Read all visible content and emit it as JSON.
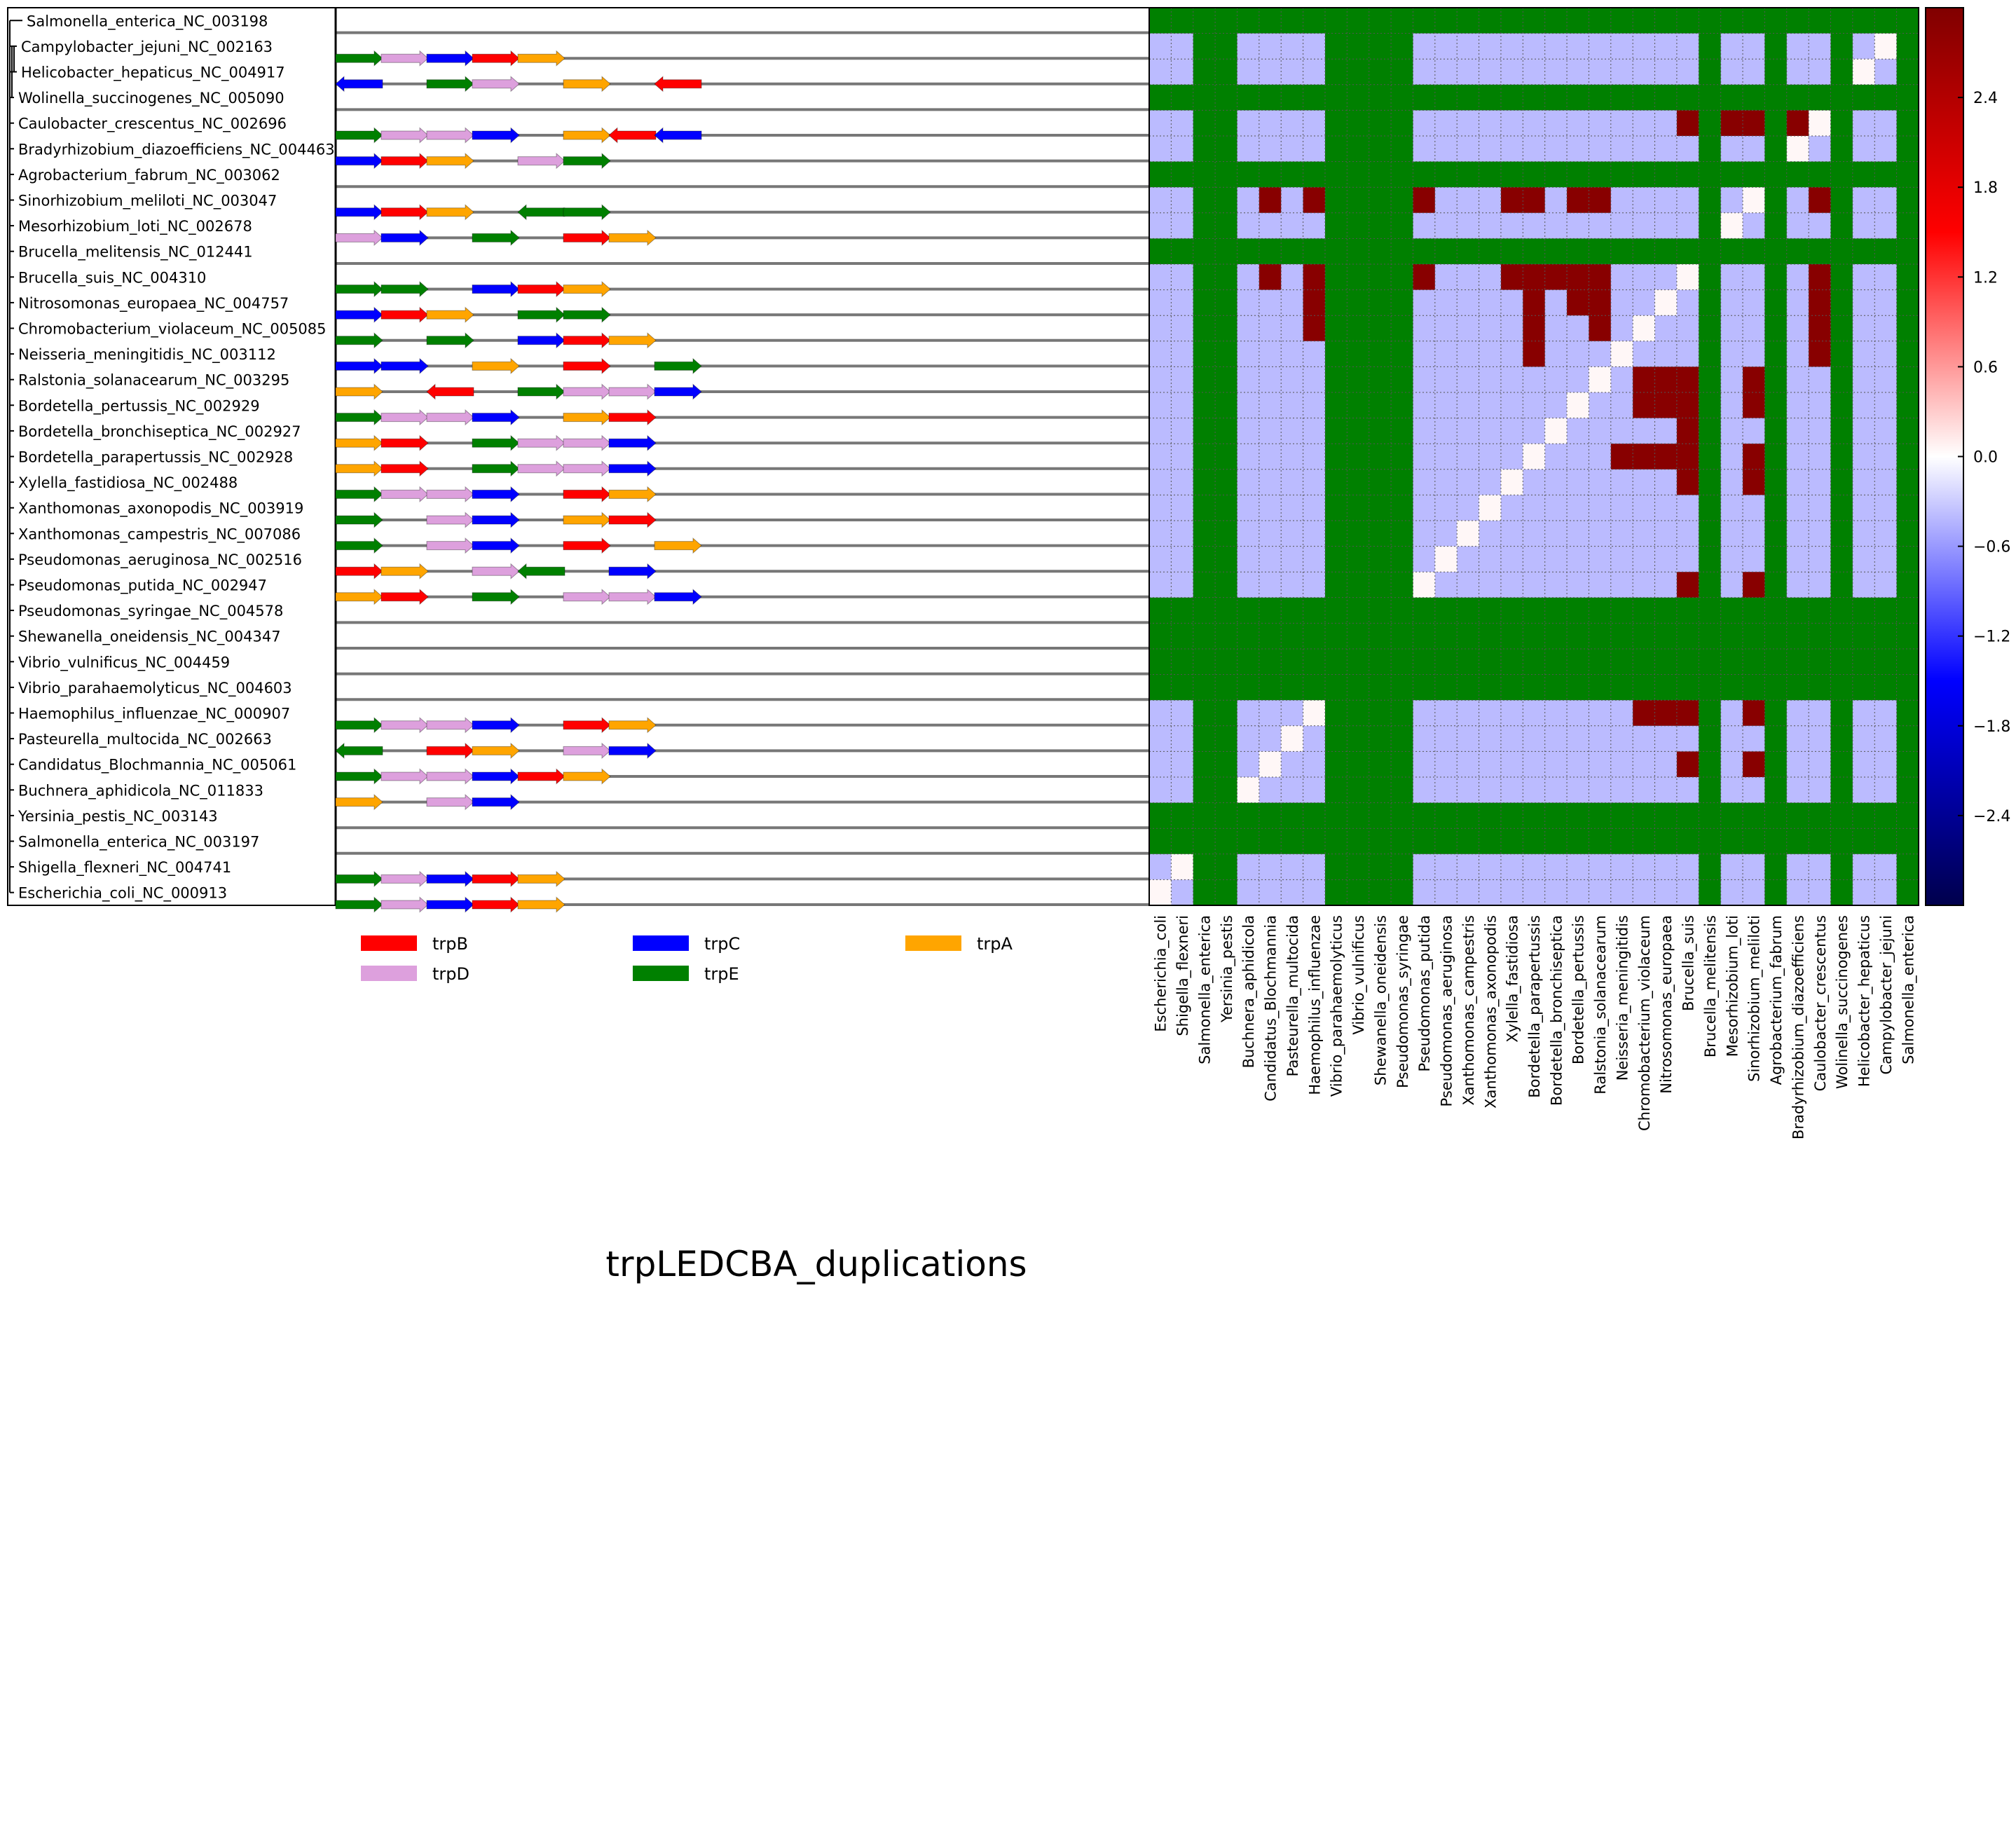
{
  "chart_data": {
    "type": "heatmap",
    "title": "trpLEDCBA_duplications",
    "tree_labels": [
      "Salmonella_enterica_NC_003198",
      "Campylobacter_jejuni_NC_002163",
      "Helicobacter_hepaticus_NC_004917",
      "Wolinella_succinogenes_NC_005090",
      "Caulobacter_crescentus_NC_002696",
      "Bradyrhizobium_diazoefficiens_NC_004463",
      "Agrobacterium_fabrum_NC_003062",
      "Sinorhizobium_meliloti_NC_003047",
      "Mesorhizobium_loti_NC_002678",
      "Brucella_melitensis_NC_012441",
      "Brucella_suis_NC_004310",
      "Nitrosomonas_europaea_NC_004757",
      "Chromobacterium_violaceum_NC_005085",
      "Neisseria_meningitidis_NC_003112",
      "Ralstonia_solanacearum_NC_003295",
      "Bordetella_pertussis_NC_002929",
      "Bordetella_bronchiseptica_NC_002927",
      "Bordetella_parapertussis_NC_002928",
      "Xylella_fastidiosa_NC_002488",
      "Xanthomonas_axonopodis_NC_003919",
      "Xanthomonas_campestris_NC_007086",
      "Pseudomonas_aeruginosa_NC_002516",
      "Pseudomonas_putida_NC_002947",
      "Pseudomonas_syringae_NC_004578",
      "Shewanella_oneidensis_NC_004347",
      "Vibrio_vulnificus_NC_004459",
      "Vibrio_parahaemolyticus_NC_004603",
      "Haemophilus_influenzae_NC_000907",
      "Pasteurella_multocida_NC_002663",
      "Candidatus_Blochmannia_NC_005061",
      "Buchnera_aphidicola_NC_011833",
      "Yersinia_pestis_NC_003143",
      "Salmonella_enterica_NC_003197",
      "Shigella_flexneri_NC_004741",
      "Escherichia_coli_NC_000913"
    ],
    "column_labels": [
      "Escherichia_coli",
      "Shigella_flexneri",
      "Salmonella_enterica",
      "Yersinia_pestis",
      "Buchnera_aphidicola",
      "Candidatus_Blochmannia",
      "Pasteurella_multocida",
      "Haemophilus_influenzae",
      "Vibrio_parahaemolyticus",
      "Vibrio_vulnificus",
      "Shewanella_oneidensis",
      "Pseudomonas_syringae",
      "Pseudomonas_putida",
      "Pseudomonas_aeruginosa",
      "Xanthomonas_campestris",
      "Xanthomonas_axonopodis",
      "Xylella_fastidiosa",
      "Bordetella_parapertussis",
      "Bordetella_bronchiseptica",
      "Bordetella_pertussis",
      "Ralstonia_solanacearum",
      "Neisseria_meningitidis",
      "Chromobacterium_violaceum",
      "Nitrosomonas_europaea",
      "Brucella_suis",
      "Brucella_melitensis",
      "Mesorhizobium_loti",
      "Sinorhizobium_meliloti",
      "Agrobacterium_fabrum",
      "Bradyrhizobium_diazoefficiens",
      "Caulobacter_crescentus",
      "Wolinella_succinogenes",
      "Helicobacter_hepaticus",
      "Campylobacter_jejuni",
      "Salmonella_enterica"
    ],
    "genes": [
      {
        "name": "trpB",
        "color": "#ff0000"
      },
      {
        "name": "trpC",
        "color": "#0000ff"
      },
      {
        "name": "trpA",
        "color": "#ffa500"
      },
      {
        "name": "trpD",
        "color": "#dda0dd"
      },
      {
        "name": "trpE",
        "color": "#008000"
      }
    ],
    "operon_rows": [
      {
        "row": 1,
        "genes": [
          [
            "trpE",
            0,
            "+"
          ],
          [
            "trpD",
            1,
            "+"
          ],
          [
            "trpC",
            2,
            "+"
          ],
          [
            "trpB",
            3,
            "+"
          ],
          [
            "trpA",
            4,
            "+"
          ]
        ]
      },
      {
        "row": 2,
        "genes": [
          [
            "trpC",
            0,
            "-"
          ],
          [
            "trpE",
            2,
            "+"
          ],
          [
            "trpD",
            3,
            "+"
          ],
          [
            "trpA",
            5,
            "+"
          ],
          [
            "trpB",
            7,
            "-"
          ]
        ]
      },
      {
        "row": 4,
        "genes": [
          [
            "trpE",
            0,
            "+"
          ],
          [
            "trpD",
            1,
            "+"
          ],
          [
            "trpD",
            2,
            "+"
          ],
          [
            "trpC",
            3,
            "+"
          ],
          [
            "trpA",
            5,
            "+"
          ],
          [
            "trpB",
            6,
            "-"
          ],
          [
            "trpC",
            7,
            "-"
          ]
        ]
      },
      {
        "row": 5,
        "genes": [
          [
            "trpC",
            0,
            "+"
          ],
          [
            "trpB",
            1,
            "+"
          ],
          [
            "trpA",
            2,
            "+"
          ],
          [
            "trpD",
            4,
            "+"
          ],
          [
            "trpE",
            5,
            "+"
          ]
        ]
      },
      {
        "row": 7,
        "genes": [
          [
            "trpC",
            0,
            "+"
          ],
          [
            "trpB",
            1,
            "+"
          ],
          [
            "trpA",
            2,
            "+"
          ],
          [
            "trpE",
            4,
            "-"
          ],
          [
            "trpE",
            5,
            "+"
          ]
        ]
      },
      {
        "row": 8,
        "genes": [
          [
            "trpD",
            0,
            "+"
          ],
          [
            "trpC",
            1,
            "+"
          ],
          [
            "trpE",
            3,
            "+"
          ],
          [
            "trpB",
            5,
            "+"
          ],
          [
            "trpA",
            6,
            "+"
          ]
        ]
      },
      {
        "row": 10,
        "genes": [
          [
            "trpE",
            0,
            "+"
          ],
          [
            "trpE",
            1,
            "+"
          ],
          [
            "trpC",
            3,
            "+"
          ],
          [
            "trpB",
            4,
            "+"
          ],
          [
            "trpA",
            5,
            "+"
          ]
        ]
      },
      {
        "row": 11,
        "genes": [
          [
            "trpC",
            0,
            "+"
          ],
          [
            "trpB",
            1,
            "+"
          ],
          [
            "trpA",
            2,
            "+"
          ],
          [
            "trpE",
            4,
            "+"
          ],
          [
            "trpE",
            5,
            "+"
          ]
        ]
      },
      {
        "row": 12,
        "genes": [
          [
            "trpE",
            0,
            "+"
          ],
          [
            "trpE",
            2,
            "+"
          ],
          [
            "trpC",
            4,
            "+"
          ],
          [
            "trpB",
            5,
            "+"
          ],
          [
            "trpA",
            6,
            "+"
          ]
        ]
      },
      {
        "row": 13,
        "genes": [
          [
            "trpC",
            0,
            "+"
          ],
          [
            "trpC",
            1,
            "+"
          ],
          [
            "trpA",
            3,
            "+"
          ],
          [
            "trpB",
            5,
            "+"
          ],
          [
            "trpE",
            7,
            "+"
          ]
        ]
      },
      {
        "row": 14,
        "genes": [
          [
            "trpA",
            0,
            "+"
          ],
          [
            "trpB",
            2,
            "-"
          ],
          [
            "trpE",
            4,
            "+"
          ],
          [
            "trpD",
            5,
            "+"
          ],
          [
            "trpD",
            6,
            "+"
          ],
          [
            "trpC",
            7,
            "+"
          ]
        ]
      },
      {
        "row": 15,
        "genes": [
          [
            "trpE",
            0,
            "+"
          ],
          [
            "trpD",
            1,
            "+"
          ],
          [
            "trpD",
            2,
            "+"
          ],
          [
            "trpC",
            3,
            "+"
          ],
          [
            "trpA",
            5,
            "+"
          ],
          [
            "trpB",
            6,
            "+"
          ]
        ]
      },
      {
        "row": 16,
        "genes": [
          [
            "trpA",
            0,
            "+"
          ],
          [
            "trpB",
            1,
            "+"
          ],
          [
            "trpE",
            3,
            "+"
          ],
          [
            "trpD",
            4,
            "+"
          ],
          [
            "trpD",
            5,
            "+"
          ],
          [
            "trpC",
            6,
            "+"
          ]
        ]
      },
      {
        "row": 17,
        "genes": [
          [
            "trpA",
            0,
            "+"
          ],
          [
            "trpB",
            1,
            "+"
          ],
          [
            "trpE",
            3,
            "+"
          ],
          [
            "trpD",
            4,
            "+"
          ],
          [
            "trpD",
            5,
            "+"
          ],
          [
            "trpC",
            6,
            "+"
          ]
        ]
      },
      {
        "row": 18,
        "genes": [
          [
            "trpE",
            0,
            "+"
          ],
          [
            "trpD",
            1,
            "+"
          ],
          [
            "trpD",
            2,
            "+"
          ],
          [
            "trpC",
            3,
            "+"
          ],
          [
            "trpB",
            5,
            "+"
          ],
          [
            "trpA",
            6,
            "+"
          ]
        ]
      },
      {
        "row": 19,
        "genes": [
          [
            "trpE",
            0,
            "+"
          ],
          [
            "trpD",
            2,
            "+"
          ],
          [
            "trpC",
            3,
            "+"
          ],
          [
            "trpA",
            5,
            "+"
          ],
          [
            "trpB",
            6,
            "+"
          ]
        ]
      },
      {
        "row": 20,
        "genes": [
          [
            "trpE",
            0,
            "+"
          ],
          [
            "trpD",
            2,
            "+"
          ],
          [
            "trpC",
            3,
            "+"
          ],
          [
            "trpB",
            5,
            "+"
          ],
          [
            "trpA",
            7,
            "+"
          ]
        ]
      },
      {
        "row": 21,
        "genes": [
          [
            "trpB",
            0,
            "+"
          ],
          [
            "trpA",
            1,
            "+"
          ],
          [
            "trpD",
            3,
            "+"
          ],
          [
            "trpE",
            4,
            "-"
          ],
          [
            "trpC",
            6,
            "+"
          ]
        ]
      },
      {
        "row": 22,
        "genes": [
          [
            "trpA",
            0,
            "+"
          ],
          [
            "trpB",
            1,
            "+"
          ],
          [
            "trpE",
            3,
            "+"
          ],
          [
            "trpD",
            5,
            "+"
          ],
          [
            "trpD",
            6,
            "+"
          ],
          [
            "trpC",
            7,
            "+"
          ]
        ]
      },
      {
        "row": 27,
        "genes": [
          [
            "trpE",
            0,
            "+"
          ],
          [
            "trpD",
            1,
            "+"
          ],
          [
            "trpD",
            2,
            "+"
          ],
          [
            "trpC",
            3,
            "+"
          ],
          [
            "trpB",
            5,
            "+"
          ],
          [
            "trpA",
            6,
            "+"
          ]
        ]
      },
      {
        "row": 28,
        "genes": [
          [
            "trpE",
            0,
            "-"
          ],
          [
            "trpB",
            2,
            "+"
          ],
          [
            "trpA",
            3,
            "+"
          ],
          [
            "trpD",
            5,
            "+"
          ],
          [
            "trpC",
            6,
            "+"
          ]
        ]
      },
      {
        "row": 29,
        "genes": [
          [
            "trpE",
            0,
            "+"
          ],
          [
            "trpD",
            1,
            "+"
          ],
          [
            "trpD",
            2,
            "+"
          ],
          [
            "trpC",
            3,
            "+"
          ],
          [
            "trpB",
            4,
            "+"
          ],
          [
            "trpA",
            5,
            "+"
          ]
        ]
      },
      {
        "row": 30,
        "genes": [
          [
            "trpA",
            0,
            "+"
          ],
          [
            "trpD",
            2,
            "+"
          ],
          [
            "trpC",
            3,
            "+"
          ]
        ]
      },
      {
        "row": 33,
        "genes": [
          [
            "trpE",
            0,
            "+"
          ],
          [
            "trpD",
            1,
            "+"
          ],
          [
            "trpC",
            2,
            "+"
          ],
          [
            "trpB",
            3,
            "+"
          ],
          [
            "trpA",
            4,
            "+"
          ]
        ]
      },
      {
        "row": 34,
        "genes": [
          [
            "trpE",
            0,
            "+"
          ],
          [
            "trpD",
            1,
            "+"
          ],
          [
            "trpC",
            2,
            "+"
          ],
          [
            "trpB",
            3,
            "+"
          ],
          [
            "trpA",
            4,
            "+"
          ]
        ]
      }
    ],
    "missing_value_color": "#008000",
    "empty_rows": [
      0,
      3,
      6,
      9,
      23,
      24,
      25,
      26,
      31,
      32
    ],
    "empty_cols": [
      2,
      3,
      8,
      9,
      10,
      11,
      25,
      28,
      31,
      34
    ],
    "baseline_value": -0.4,
    "diagonal_value": 0.05,
    "high_cells": [
      [
        4,
        24,
        2.9
      ],
      [
        4,
        25,
        2.9
      ],
      [
        4,
        26,
        2.9
      ],
      [
        4,
        27,
        2.9
      ],
      [
        4,
        29,
        2.9
      ],
      [
        7,
        5,
        2.9
      ],
      [
        7,
        7,
        2.9
      ],
      [
        7,
        12,
        2.9
      ],
      [
        7,
        16,
        2.9
      ],
      [
        7,
        17,
        2.9
      ],
      [
        7,
        19,
        2.9
      ],
      [
        7,
        20,
        2.9
      ],
      [
        7,
        30,
        2.9
      ],
      [
        10,
        5,
        2.9
      ],
      [
        10,
        7,
        2.9
      ],
      [
        10,
        12,
        2.9
      ],
      [
        10,
        16,
        2.9
      ],
      [
        10,
        17,
        2.9
      ],
      [
        10,
        18,
        2.9
      ],
      [
        10,
        19,
        2.9
      ],
      [
        10,
        20,
        2.9
      ],
      [
        10,
        30,
        2.9
      ],
      [
        11,
        7,
        2.9
      ],
      [
        11,
        17,
        2.9
      ],
      [
        11,
        19,
        2.9
      ],
      [
        11,
        20,
        2.9
      ],
      [
        11,
        30,
        2.9
      ],
      [
        12,
        7,
        2.9
      ],
      [
        12,
        17,
        2.9
      ],
      [
        12,
        20,
        2.9
      ],
      [
        12,
        30,
        2.9
      ],
      [
        13,
        17,
        2.9
      ],
      [
        13,
        30,
        2.9
      ],
      [
        14,
        22,
        2.9
      ],
      [
        14,
        23,
        2.9
      ],
      [
        14,
        24,
        2.9
      ],
      [
        14,
        27,
        2.9
      ],
      [
        15,
        22,
        2.9
      ],
      [
        15,
        23,
        2.9
      ],
      [
        15,
        24,
        2.9
      ],
      [
        15,
        27,
        2.9
      ],
      [
        16,
        24,
        2.9
      ],
      [
        17,
        21,
        2.9
      ],
      [
        17,
        22,
        2.9
      ],
      [
        17,
        23,
        2.9
      ],
      [
        17,
        24,
        2.9
      ],
      [
        17,
        27,
        2.9
      ],
      [
        18,
        24,
        2.9
      ],
      [
        18,
        27,
        2.9
      ],
      [
        22,
        24,
        2.9
      ],
      [
        22,
        27,
        2.9
      ],
      [
        27,
        22,
        2.9
      ],
      [
        27,
        23,
        2.9
      ],
      [
        27,
        24,
        2.9
      ],
      [
        27,
        27,
        2.9
      ],
      [
        29,
        24,
        2.9
      ],
      [
        29,
        27,
        2.9
      ]
    ],
    "light_cells": [
      [
        1,
        33
      ],
      [
        2,
        32
      ],
      [
        4,
        30
      ],
      [
        5,
        29
      ],
      [
        7,
        27
      ],
      [
        8,
        26
      ],
      [
        10,
        24
      ],
      [
        11,
        23
      ],
      [
        12,
        22
      ],
      [
        13,
        21
      ],
      [
        14,
        20
      ],
      [
        15,
        19
      ],
      [
        16,
        18
      ],
      [
        17,
        17
      ],
      [
        18,
        16
      ],
      [
        19,
        15
      ],
      [
        20,
        14
      ],
      [
        21,
        13
      ],
      [
        22,
        12
      ],
      [
        27,
        7
      ],
      [
        28,
        6
      ],
      [
        29,
        5
      ],
      [
        30,
        4
      ],
      [
        33,
        1
      ],
      [
        34,
        0
      ]
    ],
    "colorbar": {
      "colormap": "seismic",
      "vmin": -3.0,
      "vmax": 3.0,
      "ticks": [
        "2.4",
        "1.8",
        "1.2",
        "0.6",
        "0.0",
        "−0.6",
        "−1.2",
        "−1.8",
        "−2.4"
      ]
    }
  }
}
